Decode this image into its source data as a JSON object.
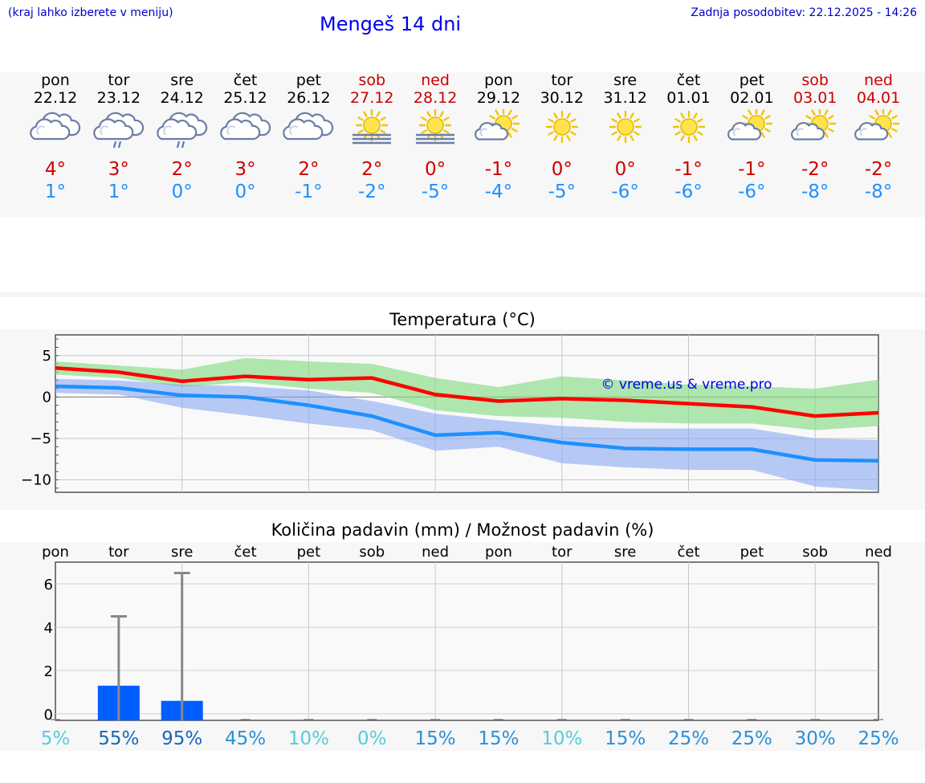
{
  "header": {
    "hint": "(kraj lahko izberete v meniju)",
    "title": "Mengeš 14 dni",
    "updated": "Zadnja posodobitev: 22.12.2025 - 14:26"
  },
  "days": [
    {
      "name": "pon",
      "date": "22.12",
      "weekend": false,
      "icon": "cloudy-icon",
      "tmax": "4°",
      "tmin": "1°"
    },
    {
      "name": "tor",
      "date": "23.12",
      "weekend": false,
      "icon": "cloud-rain-icon",
      "tmax": "3°",
      "tmin": "1°"
    },
    {
      "name": "sre",
      "date": "24.12",
      "weekend": false,
      "icon": "cloud-rain-icon",
      "tmax": "2°",
      "tmin": "0°"
    },
    {
      "name": "čet",
      "date": "25.12",
      "weekend": false,
      "icon": "cloudy-icon",
      "tmax": "3°",
      "tmin": "0°"
    },
    {
      "name": "pet",
      "date": "26.12",
      "weekend": false,
      "icon": "cloudy-icon",
      "tmax": "2°",
      "tmin": "-1°"
    },
    {
      "name": "sob",
      "date": "27.12",
      "weekend": true,
      "icon": "sun-fog-icon",
      "tmax": "2°",
      "tmin": "-2°"
    },
    {
      "name": "ned",
      "date": "28.12",
      "weekend": true,
      "icon": "sun-fog-icon",
      "tmax": "0°",
      "tmin": "-5°"
    },
    {
      "name": "pon",
      "date": "29.12",
      "weekend": false,
      "icon": "partly-cloudy-icon",
      "tmax": "-1°",
      "tmin": "-4°"
    },
    {
      "name": "tor",
      "date": "30.12",
      "weekend": false,
      "icon": "sun-icon",
      "tmax": "0°",
      "tmin": "-5°"
    },
    {
      "name": "sre",
      "date": "31.12",
      "weekend": false,
      "icon": "sun-icon",
      "tmax": "0°",
      "tmin": "-6°"
    },
    {
      "name": "čet",
      "date": "01.01",
      "weekend": false,
      "icon": "sun-icon",
      "tmax": "-1°",
      "tmin": "-6°"
    },
    {
      "name": "pet",
      "date": "02.01",
      "weekend": false,
      "icon": "partly-cloudy-icon",
      "tmax": "-1°",
      "tmin": "-6°"
    },
    {
      "name": "sob",
      "date": "03.01",
      "weekend": true,
      "icon": "partly-cloudy-icon",
      "tmax": "-2°",
      "tmin": "-8°"
    },
    {
      "name": "ned",
      "date": "04.01",
      "weekend": true,
      "icon": "partly-cloudy-icon",
      "tmax": "-2°",
      "tmin": "-8°"
    }
  ],
  "chart_data": [
    {
      "type": "line",
      "title": "Temperatura (°C)",
      "watermark": "© vreme.us & vreme.pro",
      "ylim": [
        -11.5,
        7.5
      ],
      "yticks": [
        5,
        0,
        -5,
        -10
      ],
      "ytick_labels": [
        "5",
        "0",
        "−5",
        "−10"
      ],
      "x": [
        0,
        1,
        2,
        3,
        4,
        5,
        6,
        7,
        8,
        9,
        10,
        11,
        12,
        13
      ],
      "series": [
        {
          "name": "max",
          "color": "#ff0000",
          "values": [
            3.5,
            3.0,
            1.9,
            2.5,
            2.1,
            2.3,
            0.3,
            -0.5,
            -0.2,
            -0.4,
            -0.8,
            -1.2,
            -2.3,
            -1.9
          ]
        },
        {
          "name": "min",
          "color": "#1e90ff",
          "values": [
            1.3,
            1.1,
            0.2,
            0.0,
            -1.0,
            -2.3,
            -4.6,
            -4.3,
            -5.5,
            -6.2,
            -6.3,
            -6.3,
            -7.6,
            -7.7
          ]
        }
      ],
      "max_range": {
        "low": [
          2.7,
          2.3,
          1.2,
          1.8,
          1.0,
          0.5,
          -1.6,
          -2.3,
          -2.5,
          -3.0,
          -3.2,
          -3.2,
          -4.0,
          -3.5
        ],
        "high": [
          4.3,
          3.8,
          3.3,
          4.7,
          4.3,
          4.0,
          2.3,
          1.2,
          2.5,
          2.0,
          1.5,
          1.3,
          1.0,
          2.1
        ]
      },
      "min_range": {
        "low": [
          0.5,
          0.3,
          -1.3,
          -2.2,
          -3.2,
          -4.0,
          -6.5,
          -6.0,
          -8.0,
          -8.5,
          -8.8,
          -8.8,
          -10.8,
          -11.3
        ],
        "high": [
          2.2,
          2.0,
          1.5,
          1.3,
          0.8,
          -0.5,
          -2.0,
          -2.8,
          -3.5,
          -3.8,
          -3.8,
          -3.8,
          -5.0,
          -5.2
        ]
      }
    },
    {
      "type": "bar",
      "title": "Količina padavin (mm) / Možnost padavin (%)",
      "ylim": [
        -0.3,
        7.0
      ],
      "yticks": [
        6,
        4,
        2,
        0
      ],
      "categories": [
        "pon",
        "tor",
        "sre",
        "čet",
        "pet",
        "sob",
        "ned",
        "pon",
        "tor",
        "sre",
        "čet",
        "pet",
        "sob",
        "ned"
      ],
      "values": [
        0,
        1.3,
        0.6,
        0,
        0,
        0,
        0,
        0,
        0,
        0,
        0,
        0,
        0,
        0
      ],
      "error_max": [
        0,
        4.5,
        6.5,
        0,
        0,
        0,
        0,
        0,
        0,
        0,
        0,
        0,
        0,
        0
      ],
      "bar_color": "#005eff",
      "probabilities": [
        "5%",
        "55%",
        "95%",
        "45%",
        "10%",
        "0%",
        "15%",
        "15%",
        "10%",
        "15%",
        "25%",
        "25%",
        "30%",
        "25%"
      ],
      "probability_colors": [
        "#55ccdd",
        "#1a66bb",
        "#1a66bb",
        "#2b8fd8",
        "#55ccdd",
        "#55ccdd",
        "#2b8fd8",
        "#2b8fd8",
        "#55ccdd",
        "#2b8fd8",
        "#2b8fd8",
        "#2b8fd8",
        "#2b8fd8",
        "#2b8fd8"
      ]
    }
  ]
}
